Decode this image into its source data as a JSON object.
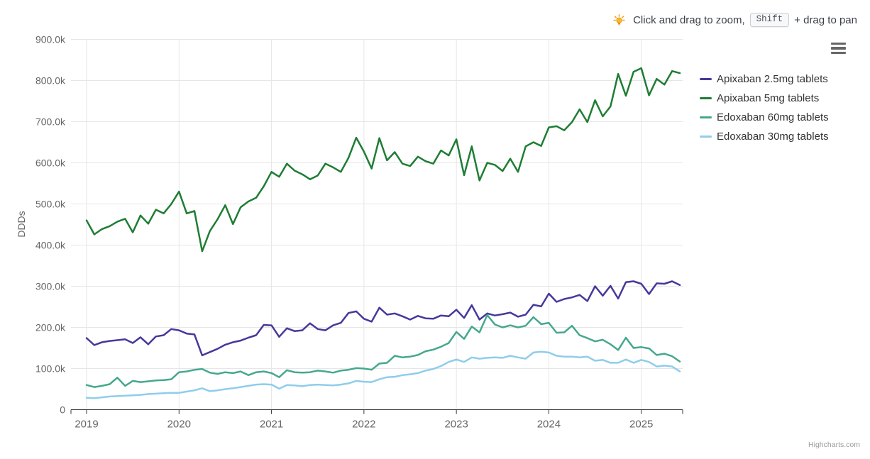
{
  "header": {
    "hint": {
      "icon": "lightbulb-icon",
      "text_before_key": "Click and drag to zoom,",
      "key_label": "Shift",
      "text_after_key": "+ drag to pan",
      "icon_color": "#f5a31a"
    },
    "menu_icon": "hamburger-menu-icon"
  },
  "credits": {
    "label": "Highcharts.com"
  },
  "chart_data": {
    "type": "line",
    "title": "",
    "xlabel": "",
    "ylabel": "DDDs",
    "x_unit": "month",
    "x_start": "2019-01",
    "x_end": "2025-06",
    "x_tick_labels": [
      "2019",
      "2020",
      "2021",
      "2022",
      "2023",
      "2024",
      "2025"
    ],
    "y_tick_labels": [
      "0",
      "100.0k",
      "200.0k",
      "300.0k",
      "400.0k",
      "500.0k",
      "600.0k",
      "700.0k",
      "800.0k",
      "900.0k"
    ],
    "ylim": [
      0,
      900000
    ],
    "values_unit": "thousand DDDs",
    "grid": true,
    "legend_position": "right",
    "grid_color": "#e6e6e6",
    "axis_line_color": "#333333",
    "axis_label_color": "#666666",
    "series": [
      {
        "name": "Apixaban 2.5mg tablets",
        "color": "#46399b",
        "values": [
          174,
          157,
          164,
          167,
          169,
          171,
          162,
          176,
          159,
          178,
          181,
          196,
          193,
          185,
          183,
          132,
          140,
          148,
          158,
          164,
          168,
          175,
          181,
          206,
          205,
          177,
          198,
          191,
          193,
          210,
          196,
          193,
          205,
          211,
          235,
          239,
          221,
          214,
          248,
          231,
          234,
          227,
          219,
          228,
          222,
          221,
          229,
          227,
          243,
          223,
          254,
          219,
          234,
          229,
          232,
          236,
          226,
          231,
          255,
          251,
          282,
          262,
          269,
          273,
          279,
          264,
          300,
          277,
          301,
          270,
          310,
          312,
          306,
          281,
          307,
          306,
          312,
          303
        ]
      },
      {
        "name": "Apixaban 5mg tablets",
        "color": "#1e7d34",
        "values": [
          460,
          426,
          439,
          446,
          457,
          464,
          431,
          472,
          452,
          486,
          477,
          500,
          530,
          477,
          483,
          385,
          434,
          463,
          497,
          451,
          492,
          506,
          515,
          543,
          578,
          566,
          598,
          581,
          572,
          560,
          569,
          598,
          589,
          578,
          612,
          661,
          627,
          586,
          660,
          606,
          626,
          598,
          592,
          615,
          604,
          598,
          630,
          618,
          657,
          570,
          640,
          557,
          600,
          595,
          580,
          610,
          578,
          640,
          650,
          641,
          686,
          689,
          679,
          699,
          730,
          699,
          752,
          713,
          737,
          816,
          763,
          821,
          830,
          764,
          804,
          790,
          823,
          818
        ]
      },
      {
        "name": "Edoxaban 60mg tablets",
        "color": "#45a88e",
        "values": [
          60,
          55,
          58,
          62,
          78,
          58,
          70,
          67,
          69,
          71,
          72,
          74,
          91,
          93,
          97,
          99,
          90,
          87,
          91,
          89,
          93,
          84,
          91,
          93,
          89,
          79,
          96,
          91,
          90,
          91,
          95,
          93,
          90,
          95,
          97,
          101,
          100,
          97,
          112,
          114,
          131,
          127,
          129,
          133,
          142,
          146,
          153,
          162,
          189,
          172,
          202,
          188,
          230,
          207,
          200,
          205,
          200,
          204,
          225,
          208,
          211,
          187,
          188,
          204,
          181,
          174,
          166,
          170,
          159,
          145,
          175,
          150,
          152,
          149,
          133,
          136,
          130,
          117
        ]
      },
      {
        "name": "Edoxaban 30mg tablets",
        "color": "#8fcdec",
        "values": [
          29,
          28,
          30,
          32,
          33,
          34,
          35,
          36,
          38,
          39,
          40,
          41,
          41,
          44,
          47,
          52,
          45,
          47,
          50,
          52,
          55,
          58,
          61,
          62,
          61,
          51,
          60,
          59,
          57,
          60,
          61,
          60,
          59,
          61,
          64,
          70,
          68,
          67,
          74,
          79,
          80,
          84,
          86,
          89,
          95,
          99,
          106,
          116,
          122,
          116,
          127,
          124,
          126,
          127,
          126,
          131,
          127,
          124,
          139,
          141,
          139,
          131,
          129,
          129,
          127,
          129,
          119,
          121,
          114,
          114,
          122,
          114,
          121,
          116,
          105,
          107,
          105,
          93
        ]
      }
    ]
  }
}
